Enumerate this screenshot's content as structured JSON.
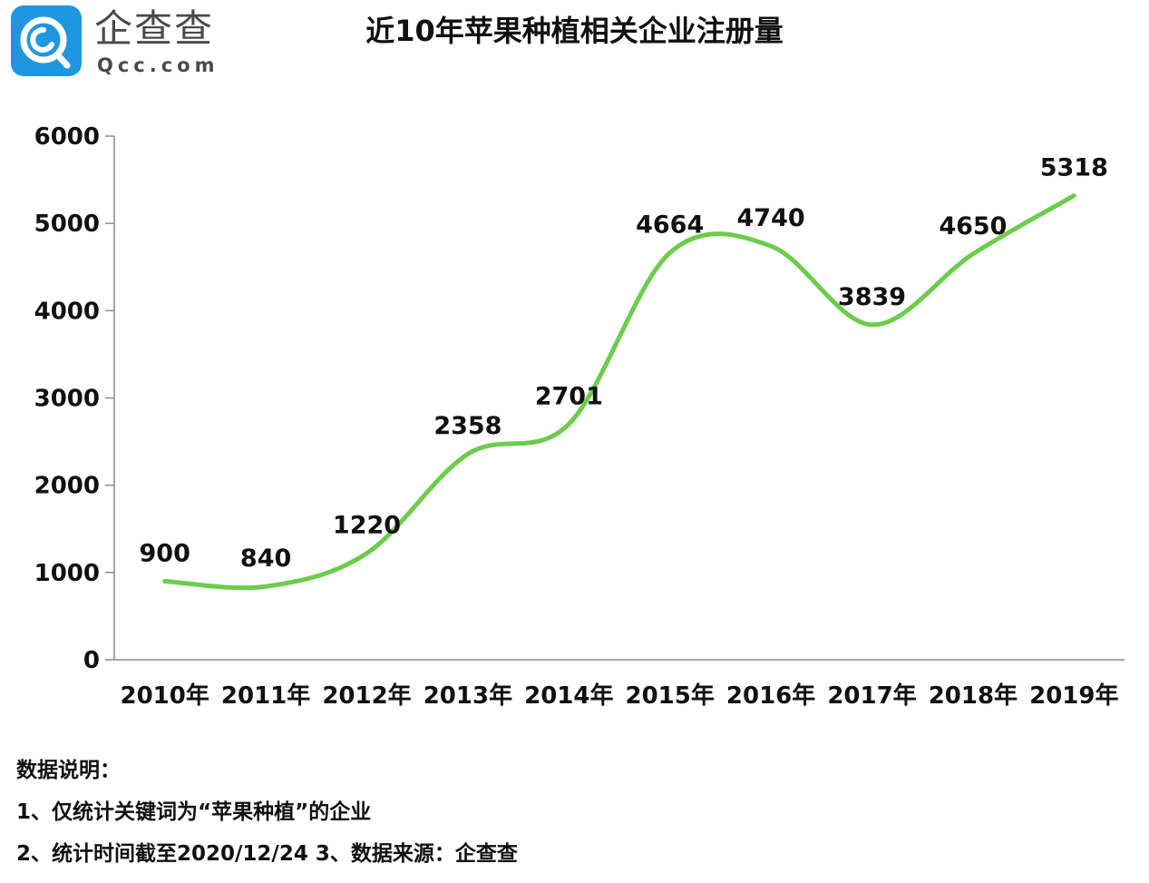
{
  "logo": {
    "name_cn": "企查查",
    "name_en": "Qcc.com",
    "brand_color": "#1f97e0"
  },
  "colors": {
    "line": "#6ccc4c",
    "axis": "#8c8c8c",
    "text": "#111111"
  },
  "chart_data": {
    "type": "line",
    "title": "近10年苹果种植相关企业注册量",
    "categories": [
      "2010年",
      "2011年",
      "2012年",
      "2013年",
      "2014年",
      "2015年",
      "2016年",
      "2017年",
      "2018年",
      "2019年"
    ],
    "series": [
      {
        "values": [
          900,
          840,
          1220,
          2358,
          2701,
          4664,
          4740,
          3839,
          4650,
          5318
        ]
      }
    ],
    "data_labels": [
      "900",
      "840",
      "1220",
      "2358",
      "2701",
      "4664",
      "4740",
      "3839",
      "4650",
      "5318"
    ],
    "y_ticks": [
      "0",
      "1000",
      "2000",
      "3000",
      "4000",
      "5000",
      "6000"
    ],
    "ylim": [
      0,
      6000
    ],
    "smooth": true,
    "grid": false,
    "legend": "none"
  },
  "notes": {
    "heading": "数据说明：",
    "line1": "1、仅统计关键词为“苹果种植”的企业",
    "line2": "2、统计时间截至2020/12/24   3、数据来源：企查查"
  }
}
